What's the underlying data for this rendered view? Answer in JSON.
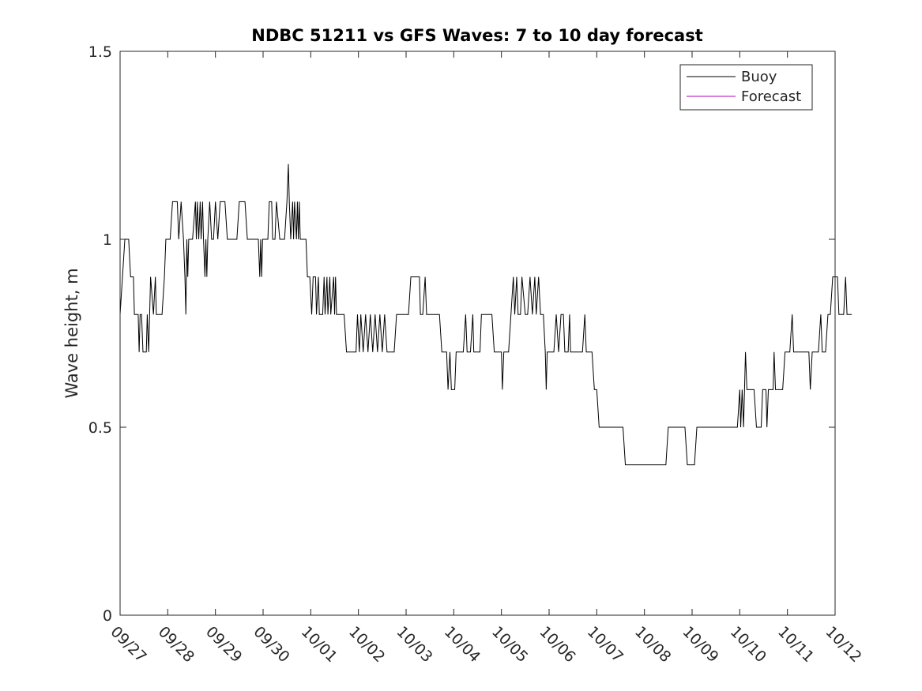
{
  "chart_data": {
    "type": "line",
    "title": "NDBC 51211 vs GFS Waves: 7 to 10 day forecast",
    "xlabel": "",
    "ylabel": "Wave height, m",
    "ylim": [
      0,
      1.5
    ],
    "xlim_days": [
      0,
      15
    ],
    "y_ticks": [
      0,
      0.5,
      1,
      1.5
    ],
    "y_tick_labels": [
      "0",
      "0.5",
      "1",
      "1.5"
    ],
    "x_tick_labels": [
      "09/27",
      "09/28",
      "09/29",
      "09/30",
      "10/01",
      "10/02",
      "10/03",
      "10/04",
      "10/05",
      "10/06",
      "10/07",
      "10/08",
      "10/09",
      "10/10",
      "10/11",
      "10/12"
    ],
    "x_unit": "days since 09/27 00:00",
    "legend": {
      "placement": "top-right"
    },
    "series": [
      {
        "name": "Buoy",
        "color": "#000000",
        "points": [
          [
            0.0,
            0.8
          ],
          [
            0.05,
            0.9
          ],
          [
            0.1,
            1.0
          ],
          [
            0.18,
            1.0
          ],
          [
            0.22,
            0.9
          ],
          [
            0.28,
            0.9
          ],
          [
            0.3,
            0.8
          ],
          [
            0.38,
            0.8
          ],
          [
            0.4,
            0.7
          ],
          [
            0.42,
            0.8
          ],
          [
            0.45,
            0.8
          ],
          [
            0.48,
            0.7
          ],
          [
            0.55,
            0.7
          ],
          [
            0.57,
            0.8
          ],
          [
            0.6,
            0.7
          ],
          [
            0.62,
            0.8
          ],
          [
            0.64,
            0.9
          ],
          [
            0.7,
            0.8
          ],
          [
            0.74,
            0.9
          ],
          [
            0.76,
            0.8
          ],
          [
            0.88,
            0.8
          ],
          [
            0.93,
            0.9
          ],
          [
            0.96,
            1.0
          ],
          [
            1.05,
            1.0
          ],
          [
            1.1,
            1.1
          ],
          [
            1.2,
            1.1
          ],
          [
            1.23,
            1.0
          ],
          [
            1.28,
            1.1
          ],
          [
            1.33,
            1.0
          ],
          [
            1.36,
            0.9
          ],
          [
            1.38,
            0.8
          ],
          [
            1.4,
            1.0
          ],
          [
            1.42,
            0.9
          ],
          [
            1.44,
            1.0
          ],
          [
            1.48,
            1.0
          ],
          [
            1.52,
            1.0
          ],
          [
            1.58,
            1.1
          ],
          [
            1.6,
            1.0
          ],
          [
            1.62,
            1.1
          ],
          [
            1.65,
            1.0
          ],
          [
            1.68,
            1.1
          ],
          [
            1.7,
            1.0
          ],
          [
            1.73,
            1.1
          ],
          [
            1.75,
            1.0
          ],
          [
            1.78,
            0.9
          ],
          [
            1.8,
            1.0
          ],
          [
            1.82,
            0.9
          ],
          [
            1.84,
            1.0
          ],
          [
            1.88,
            1.1
          ],
          [
            1.92,
            1.0
          ],
          [
            1.96,
            1.0
          ],
          [
            2.0,
            1.1
          ],
          [
            2.05,
            1.0
          ],
          [
            2.1,
            1.1
          ],
          [
            2.2,
            1.1
          ],
          [
            2.25,
            1.0
          ],
          [
            2.45,
            1.0
          ],
          [
            2.5,
            1.1
          ],
          [
            2.62,
            1.1
          ],
          [
            2.67,
            1.0
          ],
          [
            2.9,
            1.0
          ],
          [
            2.93,
            0.9
          ],
          [
            2.95,
            1.0
          ],
          [
            2.97,
            0.9
          ],
          [
            2.99,
            1.0
          ],
          [
            3.1,
            1.0
          ],
          [
            3.13,
            1.1
          ],
          [
            3.18,
            1.1
          ],
          [
            3.2,
            1.0
          ],
          [
            3.25,
            1.0
          ],
          [
            3.28,
            1.1
          ],
          [
            3.35,
            1.0
          ],
          [
            3.45,
            1.0
          ],
          [
            3.5,
            1.1
          ],
          [
            3.53,
            1.2
          ],
          [
            3.55,
            1.1
          ],
          [
            3.58,
            1.0
          ],
          [
            3.62,
            1.1
          ],
          [
            3.64,
            1.0
          ],
          [
            3.66,
            1.1
          ],
          [
            3.7,
            1.0
          ],
          [
            3.72,
            1.1
          ],
          [
            3.74,
            1.0
          ],
          [
            3.76,
            1.1
          ],
          [
            3.78,
            1.0
          ],
          [
            3.9,
            1.0
          ],
          [
            3.93,
            0.9
          ],
          [
            3.98,
            0.9
          ],
          [
            4.02,
            0.8
          ],
          [
            4.05,
            0.9
          ],
          [
            4.1,
            0.9
          ],
          [
            4.12,
            0.8
          ],
          [
            4.16,
            0.9
          ],
          [
            4.18,
            0.8
          ],
          [
            4.25,
            0.8
          ],
          [
            4.28,
            0.9
          ],
          [
            4.3,
            0.8
          ],
          [
            4.34,
            0.9
          ],
          [
            4.36,
            0.8
          ],
          [
            4.4,
            0.9
          ],
          [
            4.42,
            0.8
          ],
          [
            4.48,
            0.9
          ],
          [
            4.5,
            0.8
          ],
          [
            4.52,
            0.9
          ],
          [
            4.54,
            0.8
          ],
          [
            4.7,
            0.8
          ],
          [
            4.75,
            0.7
          ],
          [
            4.95,
            0.7
          ],
          [
            4.98,
            0.8
          ],
          [
            5.02,
            0.7
          ],
          [
            5.05,
            0.8
          ],
          [
            5.1,
            0.7
          ],
          [
            5.15,
            0.8
          ],
          [
            5.2,
            0.7
          ],
          [
            5.25,
            0.8
          ],
          [
            5.3,
            0.7
          ],
          [
            5.35,
            0.8
          ],
          [
            5.4,
            0.7
          ],
          [
            5.45,
            0.8
          ],
          [
            5.5,
            0.7
          ],
          [
            5.55,
            0.8
          ],
          [
            5.6,
            0.7
          ],
          [
            5.75,
            0.7
          ],
          [
            5.8,
            0.8
          ],
          [
            6.05,
            0.8
          ],
          [
            6.1,
            0.9
          ],
          [
            6.28,
            0.9
          ],
          [
            6.3,
            0.8
          ],
          [
            6.35,
            0.8
          ],
          [
            6.4,
            0.9
          ],
          [
            6.43,
            0.8
          ],
          [
            6.7,
            0.8
          ],
          [
            6.75,
            0.7
          ],
          [
            6.85,
            0.7
          ],
          [
            6.88,
            0.6
          ],
          [
            6.92,
            0.7
          ],
          [
            6.95,
            0.6
          ],
          [
            7.02,
            0.6
          ],
          [
            7.05,
            0.7
          ],
          [
            7.2,
            0.7
          ],
          [
            7.25,
            0.8
          ],
          [
            7.28,
            0.7
          ],
          [
            7.35,
            0.7
          ],
          [
            7.4,
            0.8
          ],
          [
            7.42,
            0.7
          ],
          [
            7.55,
            0.7
          ],
          [
            7.58,
            0.8
          ],
          [
            7.8,
            0.8
          ],
          [
            7.85,
            0.7
          ],
          [
            8.0,
            0.7
          ],
          [
            8.02,
            0.6
          ],
          [
            8.05,
            0.7
          ],
          [
            8.15,
            0.7
          ],
          [
            8.2,
            0.8
          ],
          [
            8.25,
            0.9
          ],
          [
            8.28,
            0.8
          ],
          [
            8.32,
            0.9
          ],
          [
            8.35,
            0.8
          ],
          [
            8.4,
            0.8
          ],
          [
            8.43,
            0.9
          ],
          [
            8.5,
            0.8
          ],
          [
            8.55,
            0.8
          ],
          [
            8.6,
            0.9
          ],
          [
            8.65,
            0.8
          ],
          [
            8.7,
            0.9
          ],
          [
            8.73,
            0.8
          ],
          [
            8.78,
            0.9
          ],
          [
            8.82,
            0.8
          ],
          [
            8.88,
            0.8
          ],
          [
            8.92,
            0.7
          ],
          [
            8.94,
            0.6
          ],
          [
            8.96,
            0.7
          ],
          [
            9.1,
            0.7
          ],
          [
            9.15,
            0.8
          ],
          [
            9.2,
            0.7
          ],
          [
            9.25,
            0.8
          ],
          [
            9.3,
            0.8
          ],
          [
            9.33,
            0.7
          ],
          [
            9.4,
            0.7
          ],
          [
            9.43,
            0.8
          ],
          [
            9.45,
            0.7
          ],
          [
            9.7,
            0.7
          ],
          [
            9.75,
            0.8
          ],
          [
            9.78,
            0.7
          ],
          [
            9.9,
            0.7
          ],
          [
            9.95,
            0.6
          ],
          [
            10.0,
            0.6
          ],
          [
            10.05,
            0.5
          ],
          [
            10.3,
            0.5
          ],
          [
            10.55,
            0.5
          ],
          [
            10.6,
            0.4
          ],
          [
            11.45,
            0.4
          ],
          [
            11.5,
            0.5
          ],
          [
            11.85,
            0.5
          ],
          [
            11.9,
            0.4
          ],
          [
            12.05,
            0.4
          ],
          [
            12.1,
            0.5
          ],
          [
            12.95,
            0.5
          ],
          [
            13.0,
            0.6
          ],
          [
            13.02,
            0.5
          ],
          [
            13.05,
            0.6
          ],
          [
            13.08,
            0.5
          ],
          [
            13.1,
            0.6
          ],
          [
            13.12,
            0.7
          ],
          [
            13.15,
            0.6
          ],
          [
            13.3,
            0.6
          ],
          [
            13.35,
            0.5
          ],
          [
            13.45,
            0.5
          ],
          [
            13.48,
            0.6
          ],
          [
            13.55,
            0.6
          ],
          [
            13.57,
            0.5
          ],
          [
            13.6,
            0.6
          ],
          [
            13.7,
            0.6
          ],
          [
            13.72,
            0.7
          ],
          [
            13.75,
            0.6
          ],
          [
            13.9,
            0.6
          ],
          [
            13.95,
            0.7
          ],
          [
            14.05,
            0.7
          ],
          [
            14.1,
            0.8
          ],
          [
            14.13,
            0.7
          ],
          [
            14.45,
            0.7
          ],
          [
            14.48,
            0.6
          ],
          [
            14.52,
            0.7
          ],
          [
            14.65,
            0.7
          ],
          [
            14.7,
            0.8
          ],
          [
            14.73,
            0.7
          ],
          [
            14.8,
            0.7
          ],
          [
            14.85,
            0.8
          ],
          [
            14.9,
            0.8
          ],
          [
            14.95,
            0.9
          ],
          [
            15.05,
            0.9
          ],
          [
            15.08,
            0.8
          ],
          [
            15.18,
            0.8
          ],
          [
            15.22,
            0.9
          ],
          [
            15.25,
            0.8
          ],
          [
            15.35,
            0.8
          ]
        ]
      },
      {
        "name": "Forecast",
        "color": "#b000b5",
        "points": []
      }
    ]
  }
}
